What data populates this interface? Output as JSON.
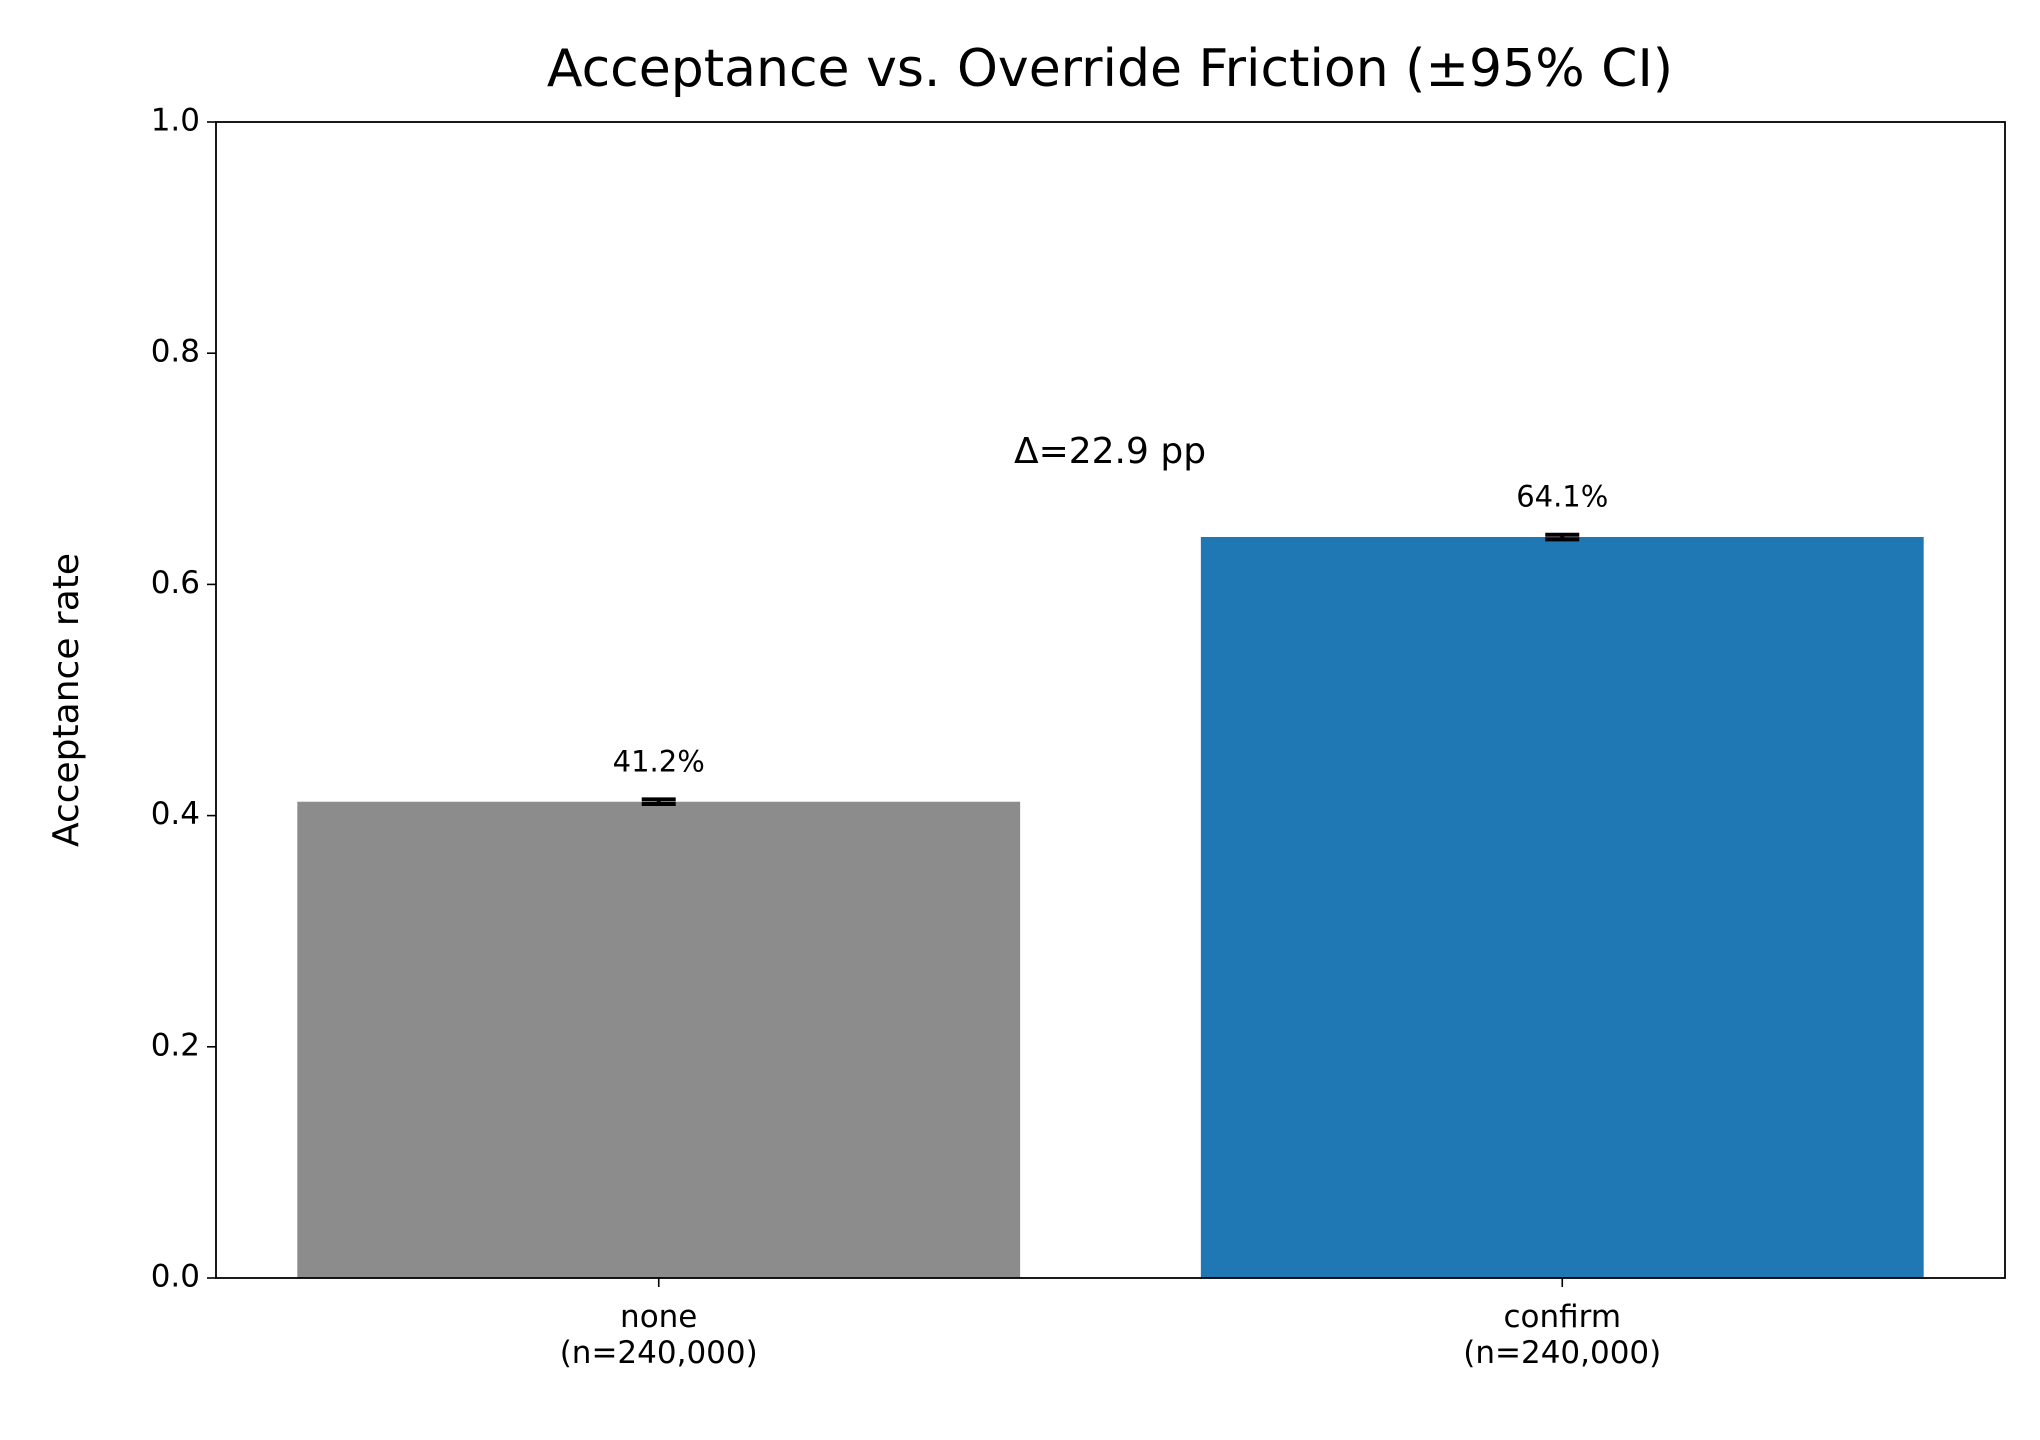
{
  "chart_data": {
    "type": "bar",
    "title": "Acceptance vs. Override Friction (±95% CI)",
    "y_label": "Acceptance rate",
    "categories": [
      "none\n(n=240,000)",
      "confirm\n(n=240,000)"
    ],
    "values": [
      0.412,
      0.641
    ],
    "value_labels": [
      "41.2%",
      "64.1%"
    ],
    "errors": [
      0.002,
      0.002
    ],
    "colors": [
      "#8c8c8c",
      "#1f77b4"
    ],
    "annotation": "Δ=22.9 pp",
    "ylim": [
      0,
      1
    ],
    "yticks": [
      {
        "value": 0,
        "label": "0.0"
      },
      0.2,
      0.4,
      0.6,
      0.8,
      {
        "value": 1,
        "label": "1.0"
      }
    ],
    "grid": false
  }
}
